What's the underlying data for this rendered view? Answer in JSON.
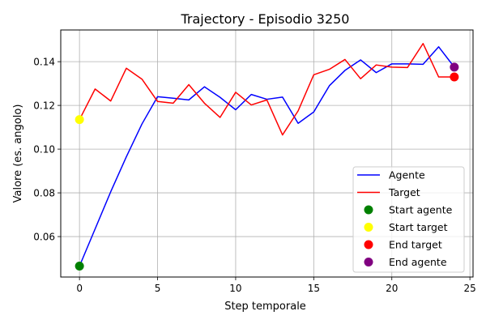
{
  "chart_data": {
    "type": "line",
    "title": "Trajectory - Episodio 3250",
    "xlabel": "Step temporale",
    "ylabel": "Valore (es. angolo)",
    "xlim": [
      -1.2,
      25.2
    ],
    "ylim": [
      0.0415,
      0.1545
    ],
    "grid": true,
    "legend_position": "bottom-right",
    "xticks": [
      0,
      5,
      10,
      15,
      20,
      25
    ],
    "yticks": [
      0.06,
      0.08,
      0.1,
      0.12,
      0.14
    ],
    "xtick_labels": [
      "0",
      "5",
      "10",
      "15",
      "20",
      "25"
    ],
    "ytick_labels": [
      "0.06",
      "0.08",
      "0.10",
      "0.12",
      "0.14"
    ],
    "x": [
      0,
      1,
      2,
      3,
      4,
      5,
      6,
      7,
      8,
      9,
      10,
      11,
      12,
      13,
      14,
      15,
      16,
      17,
      18,
      19,
      20,
      21,
      22,
      23,
      24
    ],
    "series": [
      {
        "name": "Agente",
        "color": "#0000ff",
        "values": [
          0.0465,
          0.0635,
          0.0805,
          0.0965,
          0.1115,
          0.124,
          0.1233,
          0.1225,
          0.1285,
          0.1237,
          0.118,
          0.125,
          0.1228,
          0.1238,
          0.1118,
          0.117,
          0.129,
          0.136,
          0.1408,
          0.135,
          0.139,
          0.139,
          0.1388,
          0.1468,
          0.1375
        ]
      },
      {
        "name": "Target",
        "color": "#ff0000",
        "values": [
          0.1135,
          0.1275,
          0.122,
          0.137,
          0.132,
          0.1218,
          0.121,
          0.1295,
          0.121,
          0.1145,
          0.126,
          0.1202,
          0.1225,
          0.1065,
          0.1175,
          0.134,
          0.1365,
          0.141,
          0.1322,
          0.1385,
          0.1375,
          0.1373,
          0.1483,
          0.133,
          0.133
        ]
      }
    ],
    "markers": [
      {
        "name": "Start agente",
        "color": "#008000",
        "x": 0,
        "y": 0.0465
      },
      {
        "name": "Start target",
        "color": "#ffff00",
        "x": 0,
        "y": 0.1135
      },
      {
        "name": "End target",
        "color": "#ff0000",
        "x": 24,
        "y": 0.133
      },
      {
        "name": "End agente",
        "color": "#800080",
        "x": 24,
        "y": 0.1375
      }
    ]
  }
}
